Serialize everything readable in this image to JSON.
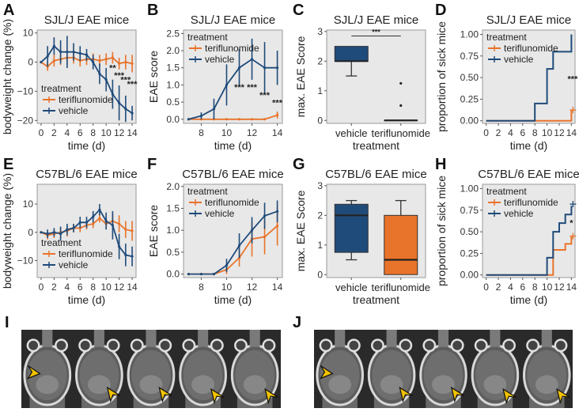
{
  "colors": {
    "teriflunomide": "#E8732A",
    "vehicle": "#1F4B7A",
    "panel_bg": "#E8E8E8",
    "panel_border": "#9A9A9A",
    "arrowhead": "#F2C200"
  },
  "panels": {
    "A": {
      "label": "A"
    },
    "B": {
      "label": "B"
    },
    "C": {
      "label": "C"
    },
    "D": {
      "label": "D"
    },
    "E": {
      "label": "E"
    },
    "F": {
      "label": "F"
    },
    "G": {
      "label": "G"
    },
    "H": {
      "label": "H"
    },
    "I": {
      "label": "I",
      "description": "MRI horizontal brain slices (5 slices) with yellow arrowheads marking lesions"
    },
    "J": {
      "label": "J",
      "description": "MRI horizontal brain slices (5 slices) with yellow arrowheads marking lesions"
    }
  },
  "chart_data": [
    {
      "id": "A",
      "type": "line",
      "title": "SJL/J EAE mice",
      "xlabel": "time (d)",
      "ylabel": "bodyweight change (%)",
      "xlim": [
        -0.6,
        14.6
      ],
      "ylim": [
        -21,
        11
      ],
      "xticks": [
        0,
        2,
        4,
        6,
        8,
        10,
        12,
        14
      ],
      "xtick_labels": [
        "0",
        "2",
        "4",
        "6",
        "8",
        "10",
        "12",
        "14"
      ],
      "yticks": [
        -20,
        -10,
        0,
        10
      ],
      "ytick_labels": [
        "-20",
        "-10",
        "0",
        "10"
      ],
      "legend": {
        "title": "treatment",
        "entries": [
          "teriflunomide",
          "vehicle"
        ],
        "position": "bottom-left"
      },
      "x": [
        0,
        1,
        2,
        3,
        4,
        5,
        6,
        7,
        8,
        9,
        10,
        11,
        12,
        13,
        14
      ],
      "series": [
        {
          "name": "teriflunomide",
          "values": [
            0,
            -1.5,
            0.5,
            1,
            1.5,
            1.5,
            0.5,
            1,
            1,
            0.5,
            1,
            1.5,
            -0.5,
            0,
            -0.5
          ],
          "err": [
            0,
            1.5,
            2,
            2,
            2,
            2,
            2,
            2,
            2,
            2,
            2,
            2,
            2,
            2.5,
            3
          ]
        },
        {
          "name": "vehicle",
          "values": [
            0,
            2,
            5.5,
            3.5,
            3.5,
            3.5,
            3,
            2.5,
            0,
            -4,
            -6,
            -11,
            -14,
            -16,
            -17.5
          ],
          "err": [
            0,
            3.5,
            3,
            4,
            5.5,
            3,
            2.5,
            2,
            2.5,
            3.5,
            4,
            5,
            6,
            4.5,
            2.5
          ]
        }
      ],
      "annotations": [
        {
          "x": 11,
          "y": -3,
          "text": "**"
        },
        {
          "x": 12,
          "y": -5.5,
          "text": "***"
        },
        {
          "x": 13,
          "y": -7,
          "text": "***"
        },
        {
          "x": 14,
          "y": -8.5,
          "text": "***"
        }
      ]
    },
    {
      "id": "B",
      "type": "line",
      "title": "SJL/J EAE mice",
      "xlabel": "time (d)",
      "ylabel": "EAE score",
      "xlim": [
        6.6,
        14.4
      ],
      "ylim": [
        -0.12,
        2.6
      ],
      "xticks": [
        8,
        10,
        12,
        14
      ],
      "xtick_labels": [
        "8",
        "10",
        "12",
        "14"
      ],
      "yticks": [
        0,
        0.5,
        1.0,
        1.5,
        2.0,
        2.5
      ],
      "ytick_labels": [
        "0.0",
        "0.5",
        "1.0",
        "1.5",
        "2.0",
        "2.5"
      ],
      "legend": {
        "title": "treatment",
        "entries": [
          "teriflunomide",
          "vehicle"
        ],
        "position": "top-left"
      },
      "x": [
        7,
        8,
        9,
        10,
        11,
        12,
        13,
        14
      ],
      "series": [
        {
          "name": "teriflunomide",
          "values": [
            0,
            0,
            0,
            0,
            0,
            0,
            0,
            0.12
          ],
          "err": [
            0,
            0,
            0,
            0,
            0,
            0,
            0,
            0.1
          ]
        },
        {
          "name": "vehicle",
          "values": [
            0,
            0.1,
            0.3,
            1.0,
            1.5,
            1.75,
            1.5,
            1.5
          ],
          "err": [
            0,
            0.1,
            0.3,
            0.6,
            0.55,
            0.6,
            0.75,
            0.5
          ]
        }
      ],
      "annotations": [
        {
          "x": 11,
          "y": 0.85,
          "text": "***"
        },
        {
          "x": 12,
          "y": 0.85,
          "text": "***"
        },
        {
          "x": 13,
          "y": 0.62,
          "text": "***"
        },
        {
          "x": 14,
          "y": 0.4,
          "text": "***"
        }
      ]
    },
    {
      "id": "C",
      "type": "box",
      "title": "SJL/J EAE mice",
      "xlabel": "treatment",
      "ylabel": "max. EAE Score",
      "ylim": [
        -0.1,
        3.05
      ],
      "yticks": [
        0,
        1,
        2,
        3
      ],
      "ytick_labels": [
        "0",
        "1",
        "2",
        "3"
      ],
      "categories": [
        "vehicle",
        "teriflunomide"
      ],
      "boxes": [
        {
          "name": "vehicle",
          "min": 1.5,
          "q1": 2.0,
          "median": 2.0,
          "q3": 2.5,
          "max": 2.5,
          "outliers": []
        },
        {
          "name": "teriflunomide",
          "min": 0,
          "q1": 0,
          "median": 0,
          "q3": 0,
          "max": 0,
          "outliers": [
            0.5,
            1.25
          ]
        }
      ],
      "significance": {
        "text": "***",
        "y": 2.85
      }
    },
    {
      "id": "D",
      "type": "step",
      "title": "SJL/J EAE mice",
      "xlabel": "time (d)",
      "ylabel": "proportion of sick mice",
      "xlim": [
        -0.6,
        14.6
      ],
      "ylim": [
        -0.03,
        1.05
      ],
      "xticks": [
        0,
        2,
        4,
        6,
        8,
        10,
        12,
        14
      ],
      "xtick_labels": [
        "0",
        "2",
        "4",
        "6",
        "8",
        "10",
        "12",
        "14"
      ],
      "yticks": [
        0,
        0.25,
        0.5,
        0.75,
        1.0
      ],
      "ytick_labels": [
        "0.00",
        "0.25",
        "0.50",
        "0.75",
        "1.00"
      ],
      "legend": {
        "title": "treatment",
        "entries": [
          "teriflunomide",
          "vehicle"
        ],
        "position": "top-left"
      },
      "series": [
        {
          "name": "teriflunomide",
          "steps": [
            [
              0,
              0
            ],
            [
              14,
              0.125
            ]
          ],
          "end": 14,
          "censor": [
            14,
            0.125
          ]
        },
        {
          "name": "vehicle",
          "steps": [
            [
              0,
              0
            ],
            [
              8,
              0.2
            ],
            [
              10,
              0.6
            ],
            [
              11,
              0.8
            ],
            [
              14,
              1.0
            ]
          ],
          "end": 14,
          "censor": null
        }
      ],
      "annotations": [
        {
          "x": 14.2,
          "y": 0.45,
          "text": "***"
        }
      ]
    },
    {
      "id": "E",
      "type": "line",
      "title": "C57BL/6 EAE mice",
      "xlabel": "time (d)",
      "ylabel": "bodyweight change (%)",
      "xlim": [
        -0.6,
        14.6
      ],
      "ylim": [
        -16,
        17
      ],
      "xticks": [
        0,
        2,
        4,
        6,
        8,
        10,
        12,
        14
      ],
      "xtick_labels": [
        "0",
        "2",
        "4",
        "6",
        "8",
        "10",
        "12",
        "14"
      ],
      "yticks": [
        -10,
        0,
        10
      ],
      "ytick_labels": [
        "-10",
        "0",
        "10"
      ],
      "legend": {
        "title": "treatment",
        "entries": [
          "teriflunomide",
          "vehicle"
        ],
        "position": "bottom-left"
      },
      "x": [
        0,
        1,
        2,
        3,
        4,
        5,
        6,
        7,
        8,
        9,
        10,
        11,
        12,
        13,
        14
      ],
      "series": [
        {
          "name": "teriflunomide",
          "values": [
            0,
            -1,
            -0.5,
            0,
            0.5,
            1.5,
            1.5,
            2.5,
            3,
            5,
            3,
            4,
            3,
            1,
            0.5
          ],
          "err": [
            0,
            1.5,
            1.5,
            2,
            2,
            1.5,
            1.5,
            1.5,
            1.5,
            1.5,
            2,
            2.5,
            3,
            3,
            3.5
          ]
        },
        {
          "name": "vehicle",
          "values": [
            0,
            -0.5,
            0,
            -0.5,
            1,
            1.5,
            3.5,
            3.5,
            5.5,
            8,
            4,
            2.5,
            -5,
            -8,
            -8.5
          ],
          "err": [
            0,
            1.5,
            1.5,
            2.5,
            2,
            1.5,
            2,
            2,
            2,
            2,
            3,
            5,
            4.5,
            4,
            3.5
          ]
        }
      ]
    },
    {
      "id": "F",
      "type": "line",
      "title": "C57BL/6 EAE mice",
      "xlabel": "time (d)",
      "ylabel": "EAE score",
      "xlim": [
        6.6,
        14.4
      ],
      "ylim": [
        -0.08,
        2.05
      ],
      "xticks": [
        8,
        10,
        12,
        14
      ],
      "xtick_labels": [
        "8",
        "10",
        "12",
        "14"
      ],
      "yticks": [
        0,
        0.5,
        1.0,
        1.5,
        2.0
      ],
      "ytick_labels": [
        "0.0",
        "0.5",
        "1.0",
        "1.5",
        "2.0"
      ],
      "legend": {
        "title": "treatment",
        "entries": [
          "teriflunomide",
          "vehicle"
        ],
        "position": "top-left"
      },
      "x": [
        7,
        8,
        9,
        10,
        11,
        12,
        13,
        14
      ],
      "series": [
        {
          "name": "teriflunomide",
          "values": [
            0,
            0,
            0,
            0.1,
            0.37,
            0.8,
            0.85,
            1.1
          ],
          "err": [
            0,
            0,
            0,
            0.1,
            0.2,
            0.4,
            0.4,
            0.45
          ]
        },
        {
          "name": "vehicle",
          "values": [
            0,
            0,
            0,
            0.2,
            0.65,
            1.0,
            1.33,
            1.43
          ],
          "err": [
            0,
            0,
            0,
            0.15,
            0.28,
            0.3,
            0.3,
            0.25
          ]
        }
      ]
    },
    {
      "id": "G",
      "type": "box",
      "title": "C57BL/6 EAE mice",
      "xlabel": "treatment",
      "ylabel": "max. EAE Score",
      "ylim": [
        -0.1,
        3.05
      ],
      "yticks": [
        0,
        1,
        2,
        3
      ],
      "ytick_labels": [
        "0",
        "1",
        "2",
        "3"
      ],
      "categories": [
        "vehicle",
        "teriflunomide"
      ],
      "boxes": [
        {
          "name": "vehicle",
          "min": 0.5,
          "q1": 0.75,
          "median": 2.0,
          "q3": 2.375,
          "max": 2.5,
          "outliers": []
        },
        {
          "name": "teriflunomide",
          "min": 0,
          "q1": 0,
          "median": 0.5,
          "q3": 2.0,
          "max": 2.5,
          "outliers": []
        }
      ]
    },
    {
      "id": "H",
      "type": "step",
      "title": "C57BL/6 EAE mice",
      "xlabel": "time (d)",
      "ylabel": "proportion of sick mice",
      "xlim": [
        -0.6,
        14.6
      ],
      "ylim": [
        -0.03,
        1.05
      ],
      "xticks": [
        0,
        2,
        4,
        6,
        8,
        10,
        12,
        14
      ],
      "xtick_labels": [
        "0",
        "2",
        "4",
        "6",
        "8",
        "10",
        "12",
        "14"
      ],
      "yticks": [
        0,
        0.25,
        0.5,
        0.75,
        1.0
      ],
      "ytick_labels": [
        "0.00",
        "0.25",
        "0.50",
        "0.75",
        "1.00"
      ],
      "legend": {
        "title": "treatment",
        "entries": [
          "teriflunomide",
          "vehicle"
        ],
        "position": "top-left"
      },
      "series": [
        {
          "name": "teriflunomide",
          "steps": [
            [
              0,
              0
            ],
            [
              11,
              0.29
            ],
            [
              13,
              0.36
            ],
            [
              14,
              0.45
            ]
          ],
          "end": 14,
          "censor": [
            14,
            0.45
          ]
        },
        {
          "name": "vehicle",
          "steps": [
            [
              0,
              0
            ],
            [
              10,
              0.2
            ],
            [
              11,
              0.5
            ],
            [
              12,
              0.6
            ],
            [
              13,
              0.7
            ],
            [
              14,
              0.8
            ]
          ],
          "end": 14,
          "censor": [
            14,
            0.82
          ]
        }
      ],
      "annotations": [
        {
          "x": 14,
          "y": 0.57,
          "text": "*"
        }
      ]
    }
  ]
}
